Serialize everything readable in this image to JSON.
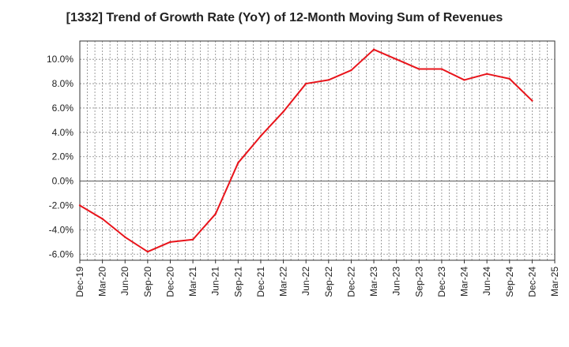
{
  "chart_data": {
    "type": "line",
    "title": "[1332]  Trend of Growth Rate (YoY) of 12-Month Moving Sum of Revenues",
    "xlabel": "",
    "ylabel": "",
    "ylim": [
      -6.5,
      11.5
    ],
    "yticks": [
      -6.0,
      -4.0,
      -2.0,
      0.0,
      2.0,
      4.0,
      6.0,
      8.0,
      10.0
    ],
    "ytick_labels": [
      "-6.0%",
      "-4.0%",
      "-2.0%",
      "0.0%",
      "2.0%",
      "4.0%",
      "6.0%",
      "8.0%",
      "10.0%"
    ],
    "categories": [
      "Dec-19",
      "Mar-20",
      "Jun-20",
      "Sep-20",
      "Dec-20",
      "Mar-21",
      "Jun-21",
      "Sep-21",
      "Dec-21",
      "Mar-22",
      "Jun-22",
      "Sep-22",
      "Dec-22",
      "Mar-23",
      "Jun-23",
      "Sep-23",
      "Dec-23",
      "Mar-24",
      "Jun-24",
      "Sep-24",
      "Dec-24",
      "Mar-25"
    ],
    "series": [
      {
        "color": "#e8141b",
        "values": [
          -2.0,
          -3.1,
          -4.6,
          -5.8,
          -5.0,
          -4.8,
          -2.7,
          1.5,
          3.7,
          5.7,
          8.0,
          8.3,
          9.1,
          10.8,
          10.0,
          9.2,
          9.2,
          8.3,
          8.8,
          8.4,
          6.6,
          null
        ]
      }
    ],
    "grid": true
  }
}
